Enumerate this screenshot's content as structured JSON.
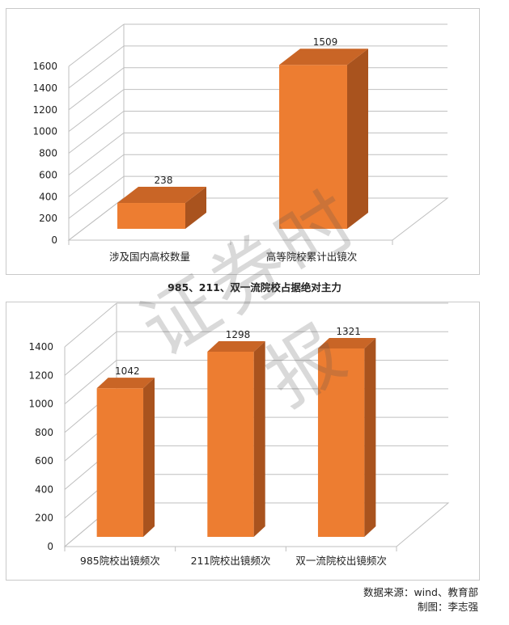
{
  "chart_data": [
    {
      "type": "bar",
      "title": "",
      "categories": [
        "涉及国内高校数量",
        "高等院校累计出镜次"
      ],
      "values": [
        238,
        1509
      ],
      "data_labels": [
        "238",
        "1509"
      ],
      "y_ticks": [
        "0",
        "200",
        "400",
        "600",
        "800",
        "1000",
        "1200",
        "1400",
        "1600"
      ],
      "ylim": [
        0,
        1600
      ],
      "grid": true,
      "legend": "none",
      "style": "3d",
      "bar_color": "#ED7D31"
    },
    {
      "type": "bar",
      "title": "985、211、双一流院校占据绝对主力",
      "categories": [
        "985院校出镜频次",
        "211院校出镜频次",
        "双一流院校出镜频次"
      ],
      "values": [
        1042,
        1298,
        1321
      ],
      "data_labels": [
        "1042",
        "1298",
        "1321"
      ],
      "y_ticks": [
        "0",
        "200",
        "400",
        "600",
        "800",
        "1000",
        "1200",
        "1400"
      ],
      "ylim": [
        0,
        1400
      ],
      "grid": true,
      "legend": "none",
      "style": "3d",
      "bar_color": "#ED7D31"
    }
  ],
  "watermark": "证券时报",
  "source": {
    "line1": "数据来源：wind、教育部",
    "line2": "制图：李志强"
  },
  "colors": {
    "bar_front": "#ED7D31",
    "bar_top": "#C96526",
    "bar_side": "#A9531E",
    "grid": "#BFBFBF"
  }
}
